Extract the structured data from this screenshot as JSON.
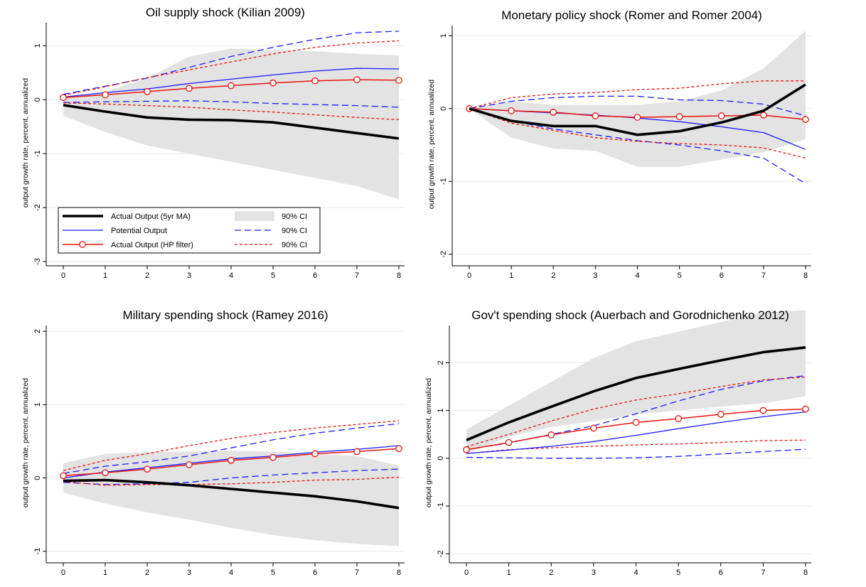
{
  "figure": {
    "y_axis_label": "output growth rate, percent, annualized"
  },
  "legend": {
    "entries": [
      {
        "label": "Actual Output (5yr MA)",
        "key": "actual5"
      },
      {
        "label": "Potential Output",
        "key": "potential"
      },
      {
        "label": "Actual Output (HP filter)",
        "key": "actualhp"
      },
      {
        "label": "90% CI",
        "key": "ci_band"
      },
      {
        "label": "90% CI",
        "key": "ci_blue"
      },
      {
        "label": "90% CI",
        "key": "ci_red"
      }
    ]
  },
  "colors": {
    "actual5": "#000000",
    "potential": "#1a1aff",
    "actualhp": "#e8140f",
    "band": "#e3e3e3",
    "grid": "#e9e9e9"
  },
  "chart_data": [
    {
      "type": "line",
      "title": "Oil supply shock (Kilian 2009)",
      "ylabel": "output growth rate, percent, annualized",
      "x": [
        0,
        1,
        2,
        3,
        4,
        5,
        6,
        7,
        8
      ],
      "xlim": [
        0,
        8
      ],
      "ylim": [
        -3,
        1.4
      ],
      "yticks": [
        -3,
        -2,
        -1,
        0,
        1
      ],
      "grid": true,
      "legend_position": "bottom-left",
      "ci_band": {
        "lower": [
          -0.3,
          -0.6,
          -0.85,
          -1.0,
          -1.15,
          -1.3,
          -1.45,
          -1.6,
          -1.85
        ],
        "upper": [
          0.02,
          0.15,
          0.4,
          0.8,
          0.95,
          0.92,
          0.9,
          0.85,
          0.82
        ]
      },
      "series": [
        {
          "name": "Actual Output (5yr MA)",
          "key": "actual5",
          "values": [
            -0.1,
            -0.22,
            -0.33,
            -0.37,
            -0.38,
            -0.42,
            -0.52,
            -0.62,
            -0.72
          ]
        },
        {
          "name": "Potential Output",
          "key": "potential",
          "values": [
            0.05,
            0.13,
            0.2,
            0.3,
            0.38,
            0.46,
            0.53,
            0.58,
            0.57
          ]
        },
        {
          "name": "Actual Output (HP filter)",
          "key": "actualhp",
          "values": [
            0.04,
            0.09,
            0.15,
            0.21,
            0.26,
            0.31,
            0.35,
            0.37,
            0.36
          ]
        },
        {
          "name": "Potential Output 90% CI upper",
          "key": "ci_blue",
          "values": [
            0.1,
            0.25,
            0.4,
            0.6,
            0.8,
            0.97,
            1.12,
            1.24,
            1.27
          ]
        },
        {
          "name": "Potential Output 90% CI lower",
          "key": "ci_blue",
          "values": [
            -0.05,
            -0.04,
            -0.03,
            -0.02,
            -0.04,
            -0.07,
            -0.09,
            -0.11,
            -0.14
          ]
        },
        {
          "name": "Actual Output (HP filter) 90% CI upper",
          "key": "ci_red",
          "values": [
            0.08,
            0.24,
            0.41,
            0.55,
            0.7,
            0.85,
            0.97,
            1.05,
            1.09
          ]
        },
        {
          "name": "Actual Output (HP filter) 90% CI lower",
          "key": "ci_red",
          "values": [
            -0.06,
            -0.08,
            -0.11,
            -0.14,
            -0.19,
            -0.23,
            -0.28,
            -0.33,
            -0.37
          ]
        }
      ]
    },
    {
      "type": "line",
      "title": "Monetary policy shock (Romer and Romer 2004)",
      "ylabel": "output growth rate, percent, annualized",
      "x": [
        0,
        1,
        2,
        3,
        4,
        5,
        6,
        7,
        8
      ],
      "xlim": [
        0,
        8
      ],
      "ylim": [
        -2.1,
        1.12
      ],
      "yticks": [
        -2,
        -1,
        0,
        1
      ],
      "grid": true,
      "ci_band": {
        "lower": [
          0,
          -0.4,
          -0.55,
          -0.58,
          -0.8,
          -0.8,
          -0.7,
          -0.6,
          -0.42
        ],
        "upper": [
          0,
          0.1,
          0.05,
          0.05,
          0.05,
          0.1,
          0.25,
          0.55,
          1.07
        ]
      },
      "series": [
        {
          "name": "Actual Output (5yr MA)",
          "key": "actual5",
          "values": [
            0,
            -0.17,
            -0.24,
            -0.24,
            -0.36,
            -0.31,
            -0.19,
            -0.03,
            0.33
          ]
        },
        {
          "name": "Potential Output",
          "key": "potential",
          "values": [
            0,
            -0.03,
            -0.06,
            -0.09,
            -0.13,
            -0.18,
            -0.25,
            -0.33,
            -0.56
          ]
        },
        {
          "name": "Actual Output (HP filter)",
          "key": "actualhp",
          "values": [
            0,
            -0.03,
            -0.05,
            -0.1,
            -0.12,
            -0.11,
            -0.1,
            -0.09,
            -0.15
          ]
        },
        {
          "name": "Potential Output 90% CI upper",
          "key": "ci_blue",
          "values": [
            0,
            0.1,
            0.15,
            0.17,
            0.17,
            0.12,
            0.11,
            0.06,
            -0.1
          ]
        },
        {
          "name": "Potential Output 90% CI lower",
          "key": "ci_blue",
          "values": [
            0,
            -0.17,
            -0.28,
            -0.36,
            -0.44,
            -0.5,
            -0.58,
            -0.68,
            -1.03
          ]
        },
        {
          "name": "Actual Output (HP filter) 90% CI upper",
          "key": "ci_red",
          "values": [
            0,
            0.15,
            0.2,
            0.22,
            0.26,
            0.28,
            0.34,
            0.38,
            0.38
          ]
        },
        {
          "name": "Actual Output (HP filter) 90% CI lower",
          "key": "ci_red",
          "values": [
            0,
            -0.2,
            -0.3,
            -0.4,
            -0.45,
            -0.48,
            -0.5,
            -0.54,
            -0.68
          ]
        }
      ]
    },
    {
      "type": "line",
      "title": "Military spending shock (Ramey 2016)",
      "ylabel": "output growth rate, percent, annualized",
      "x": [
        0,
        1,
        2,
        3,
        4,
        5,
        6,
        7,
        8
      ],
      "xlim": [
        0,
        8
      ],
      "ylim": [
        -1.1,
        2.06
      ],
      "yticks": [
        -1,
        0,
        1,
        2
      ],
      "grid": true,
      "ci_band": {
        "lower": [
          -0.2,
          -0.35,
          -0.47,
          -0.57,
          -0.68,
          -0.78,
          -0.85,
          -0.9,
          -0.93
        ],
        "upper": [
          0.2,
          0.33,
          0.35,
          0.36,
          0.37,
          0.36,
          0.33,
          0.3,
          0.17
        ]
      },
      "series": [
        {
          "name": "Actual Output (5yr MA)",
          "key": "actual5",
          "values": [
            -0.04,
            -0.03,
            -0.06,
            -0.1,
            -0.15,
            -0.2,
            -0.25,
            -0.32,
            -0.41
          ]
        },
        {
          "name": "Potential Output",
          "key": "potential",
          "values": [
            0,
            0.08,
            0.14,
            0.2,
            0.26,
            0.3,
            0.35,
            0.39,
            0.44
          ]
        },
        {
          "name": "Actual Output (HP filter)",
          "key": "actualhp",
          "values": [
            0.03,
            0.07,
            0.12,
            0.18,
            0.24,
            0.28,
            0.33,
            0.36,
            0.4
          ]
        },
        {
          "name": "Potential Output 90% CI upper",
          "key": "ci_blue",
          "values": [
            0.06,
            0.16,
            0.22,
            0.3,
            0.41,
            0.52,
            0.61,
            0.68,
            0.74
          ]
        },
        {
          "name": "Potential Output 90% CI lower",
          "key": "ci_blue",
          "values": [
            -0.06,
            -0.09,
            -0.08,
            -0.06,
            0.0,
            0.04,
            0.07,
            0.1,
            0.12
          ]
        },
        {
          "name": "Actual Output (HP filter) 90% CI upper",
          "key": "ci_red",
          "values": [
            0.1,
            0.24,
            0.33,
            0.44,
            0.54,
            0.62,
            0.68,
            0.73,
            0.78
          ]
        },
        {
          "name": "Actual Output (HP filter) 90% CI lower",
          "key": "ci_red",
          "values": [
            -0.05,
            -0.1,
            -0.09,
            -0.09,
            -0.08,
            -0.06,
            -0.03,
            -0.02,
            0.01
          ]
        }
      ]
    },
    {
      "type": "line",
      "title": "Gov't spending shock (Auerbach and Gorodnichenko 2012)",
      "ylabel": "output growth rate, percent, annualized",
      "x": [
        0,
        1,
        2,
        3,
        4,
        5,
        6,
        7,
        8
      ],
      "xlim": [
        0,
        8
      ],
      "ylim": [
        -2.1,
        2.75
      ],
      "yticks": [
        -2,
        -1,
        0,
        1,
        2
      ],
      "grid": true,
      "ci_band": {
        "lower": [
          0.1,
          0.45,
          0.65,
          0.78,
          0.92,
          1.0,
          1.08,
          1.15,
          1.3
        ],
        "upper": [
          0.6,
          1.1,
          1.6,
          2.1,
          2.45,
          2.65,
          2.85,
          3.05,
          3.1
        ]
      },
      "series": [
        {
          "name": "Actual Output (5yr MA)",
          "key": "actual5",
          "values": [
            0.38,
            0.75,
            1.08,
            1.4,
            1.68,
            1.87,
            2.05,
            2.22,
            2.32
          ]
        },
        {
          "name": "Potential Output",
          "key": "potential",
          "values": [
            0.1,
            0.17,
            0.25,
            0.35,
            0.48,
            0.62,
            0.75,
            0.87,
            0.97
          ]
        },
        {
          "name": "Actual Output (HP filter)",
          "key": "actualhp",
          "values": [
            0.18,
            0.33,
            0.49,
            0.63,
            0.75,
            0.83,
            0.92,
            1.0,
            1.03
          ]
        },
        {
          "name": "Potential Output 90% CI upper",
          "key": "ci_blue",
          "values": [
            0.18,
            0.32,
            0.5,
            0.68,
            0.93,
            1.2,
            1.44,
            1.62,
            1.73
          ]
        },
        {
          "name": "Potential Output 90% CI lower",
          "key": "ci_blue",
          "values": [
            0.02,
            0.01,
            0.0,
            0.0,
            0.01,
            0.04,
            0.09,
            0.14,
            0.19
          ]
        },
        {
          "name": "Actual Output (HP filter) 90% CI upper",
          "key": "ci_red",
          "values": [
            0.24,
            0.5,
            0.78,
            1.03,
            1.22,
            1.35,
            1.5,
            1.64,
            1.7
          ]
        },
        {
          "name": "Actual Output (HP filter) 90% CI lower",
          "key": "ci_red",
          "values": [
            0.1,
            0.18,
            0.22,
            0.25,
            0.28,
            0.3,
            0.33,
            0.37,
            0.38
          ]
        }
      ]
    }
  ]
}
